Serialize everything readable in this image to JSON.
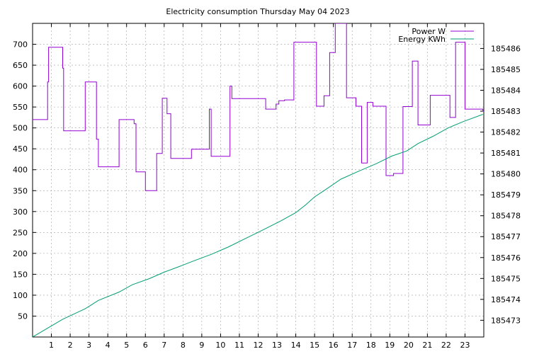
{
  "chart_data": {
    "type": "line",
    "title": "Electricity consumption Thursday May 04 2023",
    "xlabel": "",
    "ylabel": "",
    "y2label": "",
    "grid": true,
    "legend_position": "top-right",
    "xlim": [
      0,
      24
    ],
    "ylim": [
      0,
      750
    ],
    "y2lim": [
      185472.2,
      185487.2
    ],
    "x_ticks": [
      1,
      2,
      3,
      4,
      5,
      6,
      7,
      8,
      9,
      10,
      11,
      12,
      13,
      14,
      15,
      16,
      17,
      18,
      19,
      20,
      21,
      22,
      23
    ],
    "y_ticks": [
      50,
      100,
      150,
      200,
      250,
      300,
      350,
      400,
      450,
      500,
      550,
      600,
      650,
      700
    ],
    "y2_ticks": [
      185473,
      185474,
      185475,
      185476,
      185477,
      185478,
      185479,
      185480,
      185481,
      185482,
      185483,
      185484,
      185485,
      185486
    ],
    "series": [
      {
        "name": "Power W",
        "axis": "left",
        "color": "#9400d3",
        "step": true,
        "x": [
          0,
          0.8,
          0.85,
          1.6,
          1.65,
          2.75,
          2.8,
          3.4,
          3.5,
          4.6,
          5.4,
          5.5,
          6.0,
          6.6,
          6.9,
          7.15,
          7.35,
          8.25,
          8.45,
          9.0,
          9.4,
          9.5,
          10.2,
          10.5,
          10.6,
          11.5,
          12.4,
          12.95,
          13.1,
          13.4,
          13.9,
          14.3,
          15.1,
          15.5,
          15.8,
          16.1,
          16.7,
          17.2,
          17.5,
          17.8,
          18.1,
          18.8,
          19.2,
          19.7,
          20.2,
          20.5,
          21.15,
          22.0,
          22.2,
          22.5,
          23.0,
          23.95
        ],
        "y": [
          520,
          610,
          693,
          643,
          493,
          493,
          610,
          473,
          407,
          520,
          510,
          395,
          350,
          439,
          571,
          534,
          427,
          427,
          449,
          449,
          545,
          432,
          432,
          600,
          570,
          570,
          545,
          557,
          565,
          567,
          705,
          705,
          552,
          577,
          680,
          750,
          572,
          552,
          416,
          561,
          552,
          386,
          391,
          551,
          660,
          507,
          578,
          578,
          525,
          705,
          545,
          540
        ]
      },
      {
        "name": "Energy KWh",
        "axis": "right",
        "color": "#009e73",
        "step": false,
        "x": [
          0,
          1.6,
          2.8,
          3.5,
          4.6,
          5.3,
          6.2,
          7.0,
          7.8,
          8.6,
          9.5,
          10.4,
          11.3,
          12.2,
          13.2,
          14.0,
          14.5,
          15.0,
          15.5,
          16.4,
          17.4,
          18.3,
          19.1,
          19.9,
          20.5,
          21.3,
          22.1,
          22.9,
          23.95
        ],
        "y": [
          185472.2,
          185473.05,
          185473.55,
          185473.95,
          185474.35,
          185474.7,
          185474.99,
          185475.3,
          185475.57,
          185475.85,
          185476.15,
          185476.5,
          185476.9,
          185477.3,
          185477.75,
          185478.15,
          185478.5,
          185478.9,
          185479.2,
          185479.75,
          185480.15,
          185480.5,
          185480.85,
          185481.1,
          185481.45,
          185481.8,
          185482.2,
          185482.5,
          185482.85
        ]
      }
    ]
  }
}
